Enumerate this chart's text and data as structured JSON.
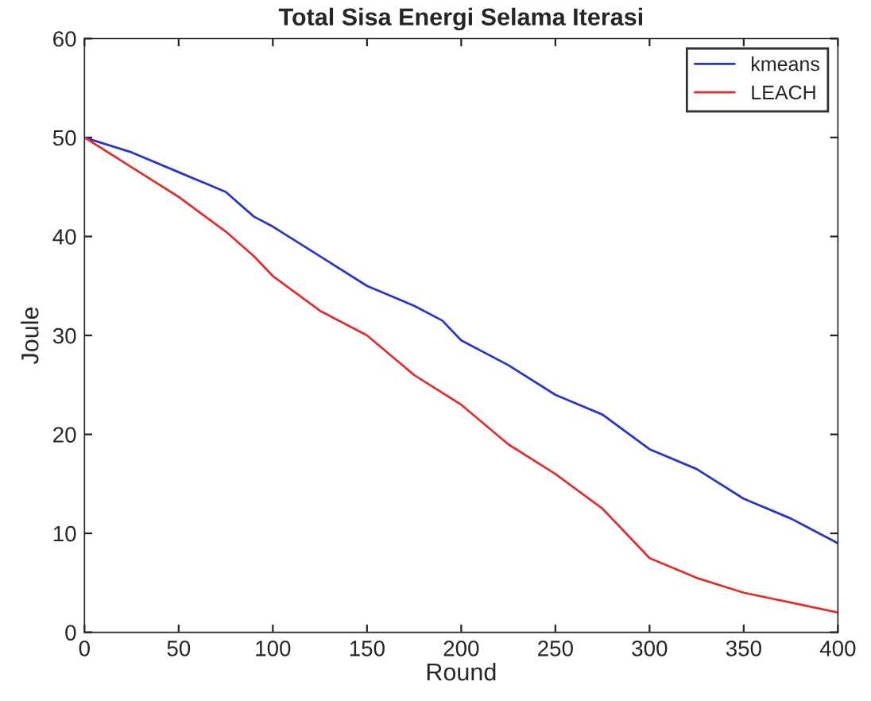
{
  "chart_data": {
    "type": "line",
    "title": "Total Sisa Energi Selama Iterasi",
    "xlabel": "Round",
    "ylabel": "Joule",
    "xlim": [
      0,
      400
    ],
    "ylim": [
      0,
      60
    ],
    "xticks": [
      0,
      50,
      100,
      150,
      200,
      250,
      300,
      350,
      400
    ],
    "yticks": [
      0,
      10,
      20,
      30,
      40,
      50,
      60
    ],
    "grid": false,
    "legend": "top right",
    "line_style": "solid",
    "marker": "none",
    "series": [
      {
        "name": "kmeans",
        "color": "#2b35c8",
        "x": [
          0,
          25,
          50,
          75,
          90,
          100,
          125,
          150,
          175,
          190,
          200,
          225,
          250,
          275,
          300,
          325,
          350,
          375,
          400
        ],
        "values": [
          50,
          48.5,
          46.5,
          44.5,
          42,
          41,
          38,
          35,
          33,
          31.5,
          29.5,
          27,
          24,
          22,
          18.5,
          16.5,
          13.5,
          11.5,
          9
        ]
      },
      {
        "name": "LEACH",
        "color": "#e0302e",
        "x": [
          0,
          25,
          50,
          75,
          90,
          100,
          125,
          150,
          175,
          200,
          225,
          250,
          275,
          290,
          300,
          325,
          350,
          375,
          400
        ],
        "values": [
          50,
          47,
          44,
          40.5,
          38,
          36,
          32.5,
          30,
          26,
          23,
          19,
          16,
          12.5,
          9.5,
          7.5,
          5.5,
          4,
          3,
          2
        ]
      }
    ]
  }
}
